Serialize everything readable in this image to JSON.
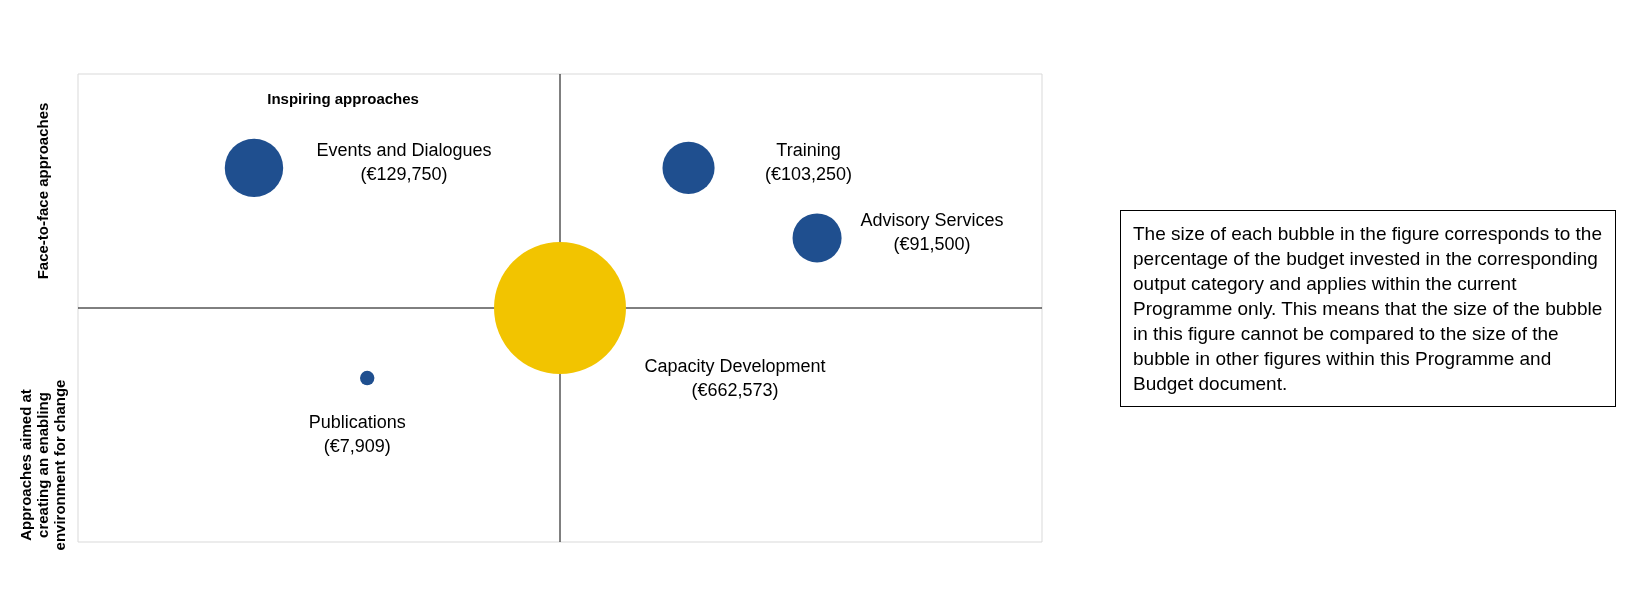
{
  "chart_data": {
    "type": "other",
    "legend": false,
    "categories": [
      "Events and Dialogues",
      "Training",
      "Advisory Services",
      "Capacity Development",
      "Publications"
    ],
    "values": [
      129750,
      103250,
      91500,
      662573,
      7909
    ],
    "value_labels": [
      "(€129,750)",
      "(€103,250)",
      "(€91,500)",
      "(€662,573)",
      "(€7,909)"
    ],
    "colors": [
      "#1f4f8f",
      "#1f4f8f",
      "#1f4f8f",
      "#f2c400",
      "#1f4f8f"
    ],
    "annotations": [
      "Inspiring approaches",
      "Face-to-face approaches",
      "Approaches aimed at creating an enabling environment for change",
      "The size of each bubble in the figure corresponds to the percentage of the budget invested in the corresponding output category and applies within the current Programme only. This means that the size of the bubble in this figure cannot be compared to the size of the bubble in other figures within this Programme and Budget document."
    ]
  }
}
